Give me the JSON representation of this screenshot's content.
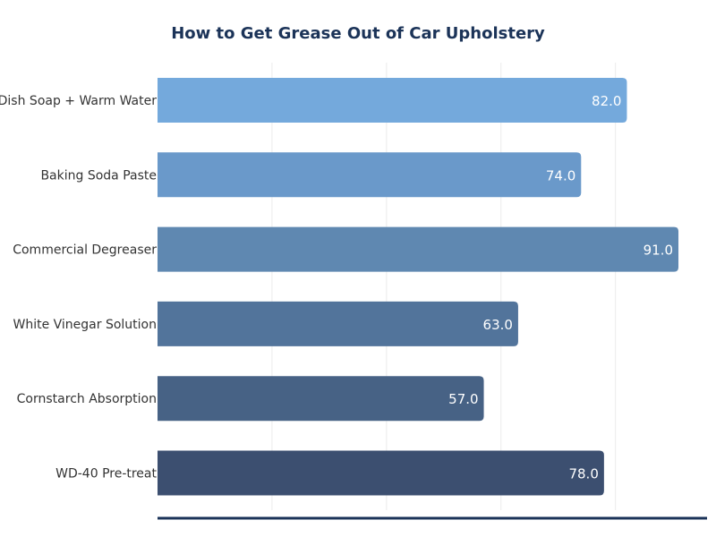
{
  "chart_data": {
    "type": "bar",
    "orientation": "horizontal",
    "title": "How to Get Grease Out of Car Upholstery",
    "categories": [
      "Dish Soap + Warm Water",
      "Baking Soda Paste",
      "Commercial Degreaser",
      "White Vinegar Solution",
      "Cornstarch Absorption",
      "WD-40 Pre-treat"
    ],
    "values": [
      82.0,
      74.0,
      91.0,
      63.0,
      57.0,
      78.0
    ],
    "value_labels": [
      "82.0",
      "74.0",
      "91.0",
      "63.0",
      "57.0",
      "78.0"
    ],
    "xlim": [
      0,
      96
    ],
    "grid": true,
    "gridlines": [
      20,
      40,
      60,
      80
    ],
    "colors": [
      "#74a9dc",
      "#6a99ca",
      "#5f88b1",
      "#52749b",
      "#476285",
      "#3c4f70"
    ],
    "title_color": "#1b3358",
    "axis_color": "#1b3358"
  }
}
